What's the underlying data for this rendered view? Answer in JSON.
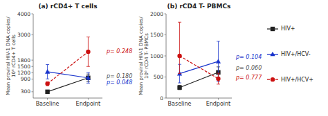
{
  "chart_data": [
    {
      "type": "line",
      "title": "(a) rCD4+ T cells",
      "y_label": "Mean proviral HIV-1 DNA copies/\n10⁶ rCD4+ T cells",
      "categories": [
        "Baseline",
        "Endpoint"
      ],
      "ylim": [
        0,
        4000
      ],
      "yticks": [
        300,
        900,
        1200,
        1500,
        1800,
        3000,
        4000
      ],
      "grid": false,
      "legend": "right",
      "series": [
        {
          "name": "HIV+",
          "color": "#222222",
          "marker": "square",
          "line_style": "solid",
          "values": [
            300,
            960
          ],
          "error_low": [
            30,
            180
          ],
          "error_high": [
            30,
            180
          ]
        },
        {
          "name": "HIV+/HCV-",
          "color": "#1a35cc",
          "marker": "triangle",
          "line_style": "solid",
          "values": [
            1250,
            960
          ],
          "error_low": [
            340,
            250
          ],
          "error_high": [
            340,
            250
          ]
        },
        {
          "name": "HIV+/HCV+",
          "color": "#cc1111",
          "marker": "circle",
          "line_style": "dashed",
          "values": [
            680,
            2200
          ],
          "error_low": [
            90,
            700
          ],
          "error_high": [
            90,
            700
          ]
        }
      ],
      "annotations": [
        {
          "text": "p= 0.248",
          "color": "#cc1111",
          "y": 2200
        },
        {
          "text": "p= 0.180",
          "color": "#555555",
          "y": 1020
        },
        {
          "text": "p= 0.048",
          "color": "#1a35cc",
          "y": 870
        }
      ]
    },
    {
      "type": "line",
      "title": "(b) rCD4 T- PBMCs",
      "y_label": "Mean proviral HIV-1 DNA copies/\n10⁶ rCD4 T- PBMCs",
      "categories": [
        "Baseline",
        "Endpoint"
      ],
      "ylim": [
        0,
        2000
      ],
      "yticks": [
        0,
        500,
        1000,
        1500,
        2000
      ],
      "grid": false,
      "series": [
        {
          "name": "HIV+",
          "color": "#222222",
          "marker": "square",
          "line_style": "solid",
          "values": [
            250,
            610
          ],
          "error_low": [
            50,
            130
          ],
          "error_high": [
            50,
            130
          ]
        },
        {
          "name": "HIV+/HCV-",
          "color": "#1a35cc",
          "marker": "triangle",
          "line_style": "solid",
          "values": [
            580,
            870
          ],
          "error_low": [
            220,
            480
          ],
          "error_high": [
            220,
            480
          ]
        },
        {
          "name": "HIV+/HCV+",
          "color": "#cc1111",
          "marker": "circle",
          "line_style": "dashed",
          "values": [
            1000,
            460
          ],
          "error_low": [
            420,
            130
          ],
          "error_high": [
            800,
            130
          ]
        }
      ],
      "annotations": [
        {
          "text": "p= 0.104",
          "color": "#1a35cc",
          "y": 980
        },
        {
          "text": "p= 0.060",
          "color": "#555555",
          "y": 720
        },
        {
          "text": "p= 0.777",
          "color": "#cc1111",
          "y": 480
        }
      ]
    }
  ]
}
